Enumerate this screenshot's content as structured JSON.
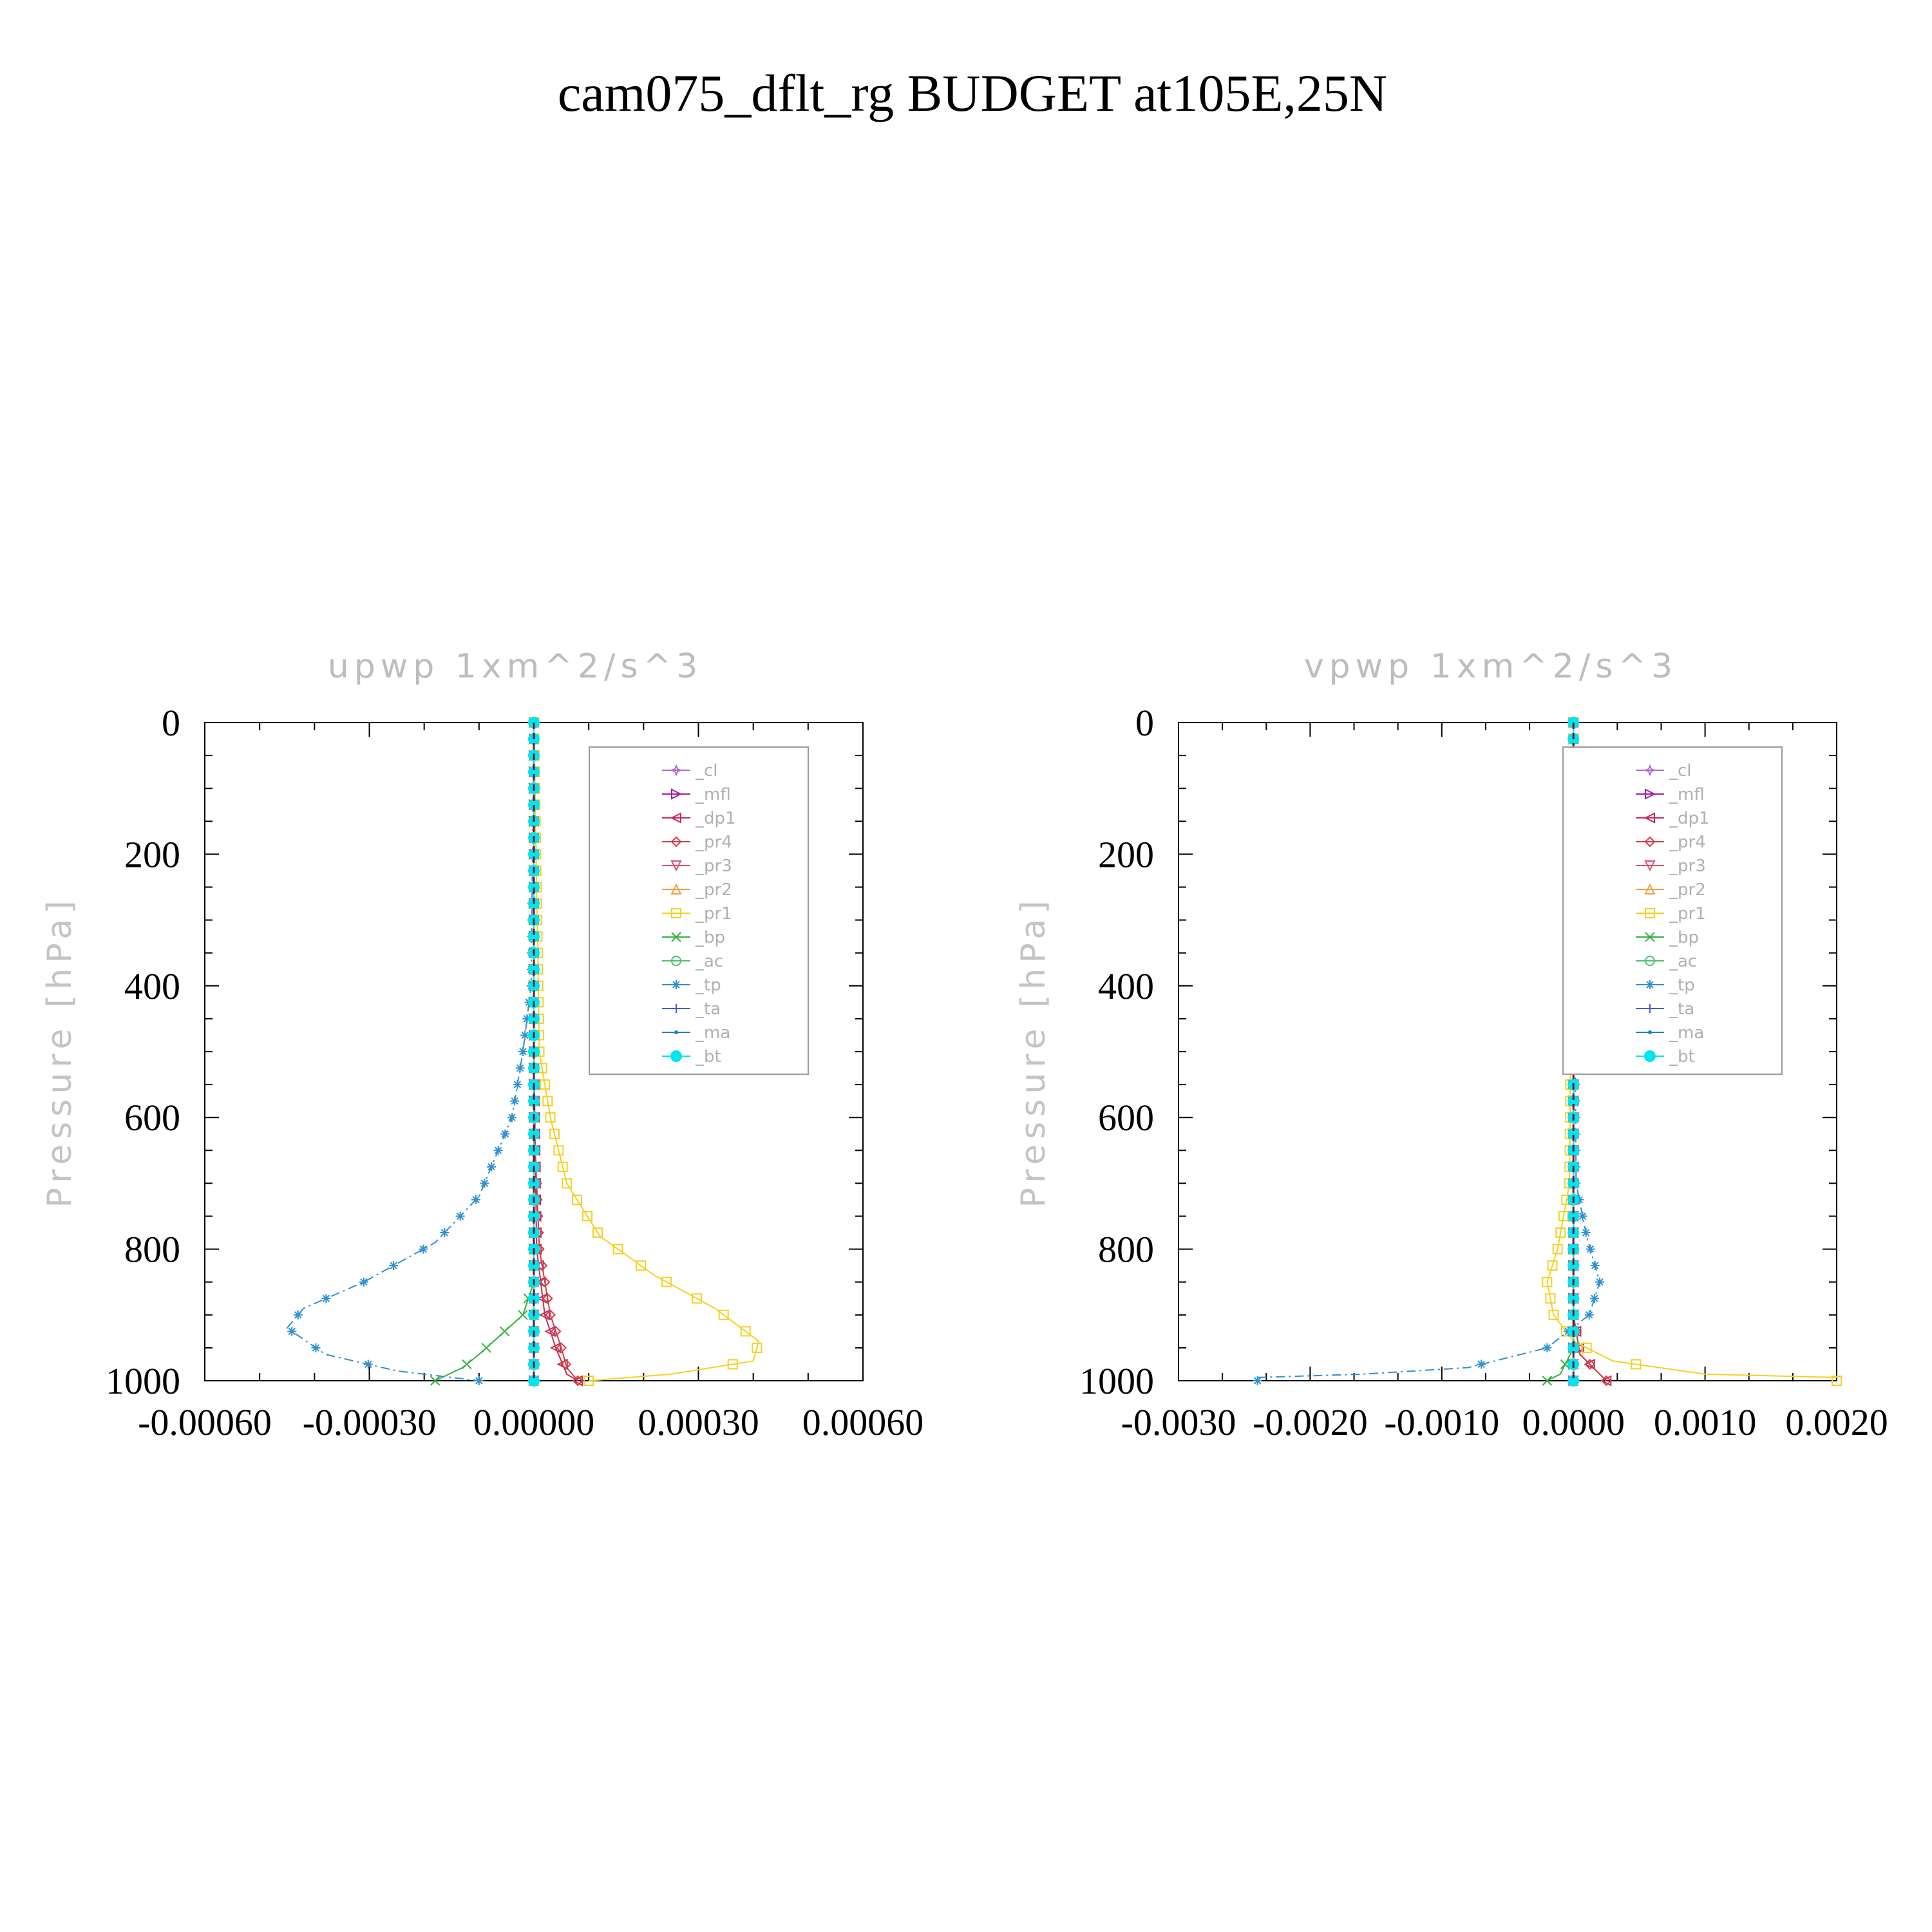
{
  "figure": {
    "title": "cam075_dflt_rg  BUDGET at105E,25N"
  },
  "chart_data": [
    {
      "type": "line",
      "title": "upwp   1xm^2/s^3",
      "ylabel": "Pressure [hPa]",
      "xlabel": "",
      "xlim": [
        -0.0006,
        0.0006
      ],
      "ylim": [
        1000,
        0
      ],
      "xticks": [
        -0.0006,
        -0.0003,
        0.0,
        0.0003,
        0.0006
      ],
      "xtick_labels": [
        "-0.00060",
        "-0.00030",
        "0.00000",
        "0.00030",
        "0.00060"
      ],
      "yticks": [
        0,
        200,
        400,
        600,
        800,
        1000
      ],
      "ytick_labels": [
        "0",
        "200",
        "400",
        "600",
        "800",
        "1000"
      ],
      "legend": "top-right",
      "series": [
        {
          "name": "_cl",
          "color": "#b06ad0",
          "marker": "star",
          "points": [
            [
              0,
              0
            ],
            [
              0,
              1000
            ]
          ]
        },
        {
          "name": "_mfl",
          "color": "#a020a0",
          "marker": "tri-right",
          "points": [
            [
              0,
              0
            ],
            [
              0,
              1000
            ]
          ]
        },
        {
          "name": "_dp1",
          "color": "#c8285a",
          "marker": "tri-left",
          "points": [
            [
              0,
              0
            ],
            [
              0,
              500
            ],
            [
              5e-06,
              800
            ],
            [
              2e-05,
              900
            ],
            [
              4e-05,
              950
            ],
            [
              6e-05,
              990
            ],
            [
              8e-05,
              1000
            ]
          ]
        },
        {
          "name": "_pr4",
          "color": "#d23c46",
          "marker": "diamond",
          "points": [
            [
              0,
              0
            ],
            [
              0,
              600
            ],
            [
              1e-05,
              800
            ],
            [
              3e-05,
              900
            ],
            [
              5e-05,
              950
            ],
            [
              6e-05,
              980
            ],
            [
              8e-05,
              1000
            ]
          ]
        },
        {
          "name": "_pr3",
          "color": "#e0506e",
          "marker": "tri-down",
          "points": [
            [
              0,
              0
            ],
            [
              0,
              1000
            ]
          ]
        },
        {
          "name": "_pr2",
          "color": "#f0a040",
          "marker": "tri-up",
          "points": [
            [
              0,
              0
            ],
            [
              0,
              1000
            ]
          ]
        },
        {
          "name": "_pr1",
          "color": "#f5d020",
          "marker": "square",
          "points": [
            [
              0,
              0
            ],
            [
              1e-05,
              500
            ],
            [
              3e-05,
              600
            ],
            [
              6e-05,
              700
            ],
            [
              0.00012,
              780
            ],
            [
              0.00022,
              840
            ],
            [
              0.00033,
              890
            ],
            [
              0.00041,
              940
            ],
            [
              0.0004,
              970
            ],
            [
              0.00025,
              990
            ],
            [
              0.0001,
              1000
            ]
          ]
        },
        {
          "name": "_bp",
          "color": "#30b040",
          "marker": "x",
          "points": [
            [
              0,
              0
            ],
            [
              0,
              850
            ],
            [
              -2e-05,
              900
            ],
            [
              -6e-05,
              930
            ],
            [
              -0.0001,
              960
            ],
            [
              -0.00013,
              980
            ],
            [
              -0.00018,
              1000
            ]
          ]
        },
        {
          "name": "_ac",
          "color": "#50c070",
          "marker": "circle",
          "points": [
            [
              0,
              0
            ],
            [
              0,
              1000
            ]
          ]
        },
        {
          "name": "_tp",
          "color": "#3090d0",
          "marker": "asterisk",
          "points": [
            [
              0,
              0
            ],
            [
              -5e-06,
              400
            ],
            [
              -2e-05,
              500
            ],
            [
              -4e-05,
              600
            ],
            [
              -0.0001,
              720
            ],
            [
              -0.00018,
              790
            ],
            [
              -0.00031,
              850
            ],
            [
              -0.00042,
              890
            ],
            [
              -0.00045,
              920
            ],
            [
              -0.00038,
              960
            ],
            [
              -0.00025,
              985
            ],
            [
              -0.0001,
              1000
            ]
          ]
        },
        {
          "name": "_ta",
          "color": "#4060d0",
          "marker": "plus",
          "points": [
            [
              0,
              0
            ],
            [
              0,
              1000
            ]
          ]
        },
        {
          "name": "_ma",
          "color": "#2080c0",
          "marker": "dot",
          "points": [
            [
              0,
              0
            ],
            [
              0,
              1000
            ]
          ]
        },
        {
          "name": "_bt",
          "color": "#00e5ee",
          "marker": "filled-circle",
          "points": [
            [
              0,
              0
            ],
            [
              0,
              1000
            ]
          ]
        }
      ]
    },
    {
      "type": "line",
      "title": "vpwp   1xm^2/s^3",
      "ylabel": "Pressure [hPa]",
      "xlabel": "",
      "xlim": [
        -0.003,
        0.002
      ],
      "ylim": [
        1000,
        0
      ],
      "xticks": [
        -0.003,
        -0.002,
        -0.001,
        0.0,
        0.001,
        0.002
      ],
      "xtick_labels": [
        "-0.0030",
        "-0.0020",
        "-0.0010",
        "0.0000",
        "0.0010",
        "0.0020"
      ],
      "yticks": [
        0,
        200,
        400,
        600,
        800,
        1000
      ],
      "ytick_labels": [
        "0",
        "200",
        "400",
        "600",
        "800",
        "1000"
      ],
      "legend": "top-right",
      "series": [
        {
          "name": "_cl",
          "color": "#b06ad0",
          "marker": "star",
          "points": [
            [
              0,
              0
            ],
            [
              0,
              1000
            ]
          ]
        },
        {
          "name": "_mfl",
          "color": "#a020a0",
          "marker": "tri-right",
          "points": [
            [
              0,
              0
            ],
            [
              0,
              1000
            ]
          ]
        },
        {
          "name": "_dp1",
          "color": "#c8285a",
          "marker": "tri-left",
          "points": [
            [
              0,
              0
            ],
            [
              0,
              900
            ],
            [
              5e-05,
              960
            ],
            [
              0.0002,
              990
            ],
            [
              0.00025,
              1000
            ]
          ]
        },
        {
          "name": "_pr4",
          "color": "#d23c46",
          "marker": "diamond",
          "points": [
            [
              0,
              0
            ],
            [
              0,
              900
            ],
            [
              5e-05,
              960
            ],
            [
              0.0002,
              990
            ],
            [
              0.00025,
              1000
            ]
          ]
        },
        {
          "name": "_pr3",
          "color": "#e0506e",
          "marker": "tri-down",
          "points": [
            [
              0,
              0
            ],
            [
              0,
              1000
            ]
          ]
        },
        {
          "name": "_pr2",
          "color": "#f0a040",
          "marker": "tri-up",
          "points": [
            [
              0,
              0
            ],
            [
              0,
              1000
            ]
          ]
        },
        {
          "name": "_pr1",
          "color": "#f5d020",
          "marker": "square",
          "points": [
            [
              0,
              0
            ],
            [
              -3e-05,
              700
            ],
            [
              -0.00012,
              800
            ],
            [
              -0.0002,
              850
            ],
            [
              -0.00015,
              900
            ],
            [
              0,
              940
            ],
            [
              0.0003,
              970
            ],
            [
              0.001,
              990
            ],
            [
              0.002,
              995
            ]
          ]
        },
        {
          "name": "_bp",
          "color": "#30b040",
          "marker": "x",
          "points": [
            [
              0,
              0
            ],
            [
              0,
              950
            ],
            [
              -0.0001,
              990
            ],
            [
              -0.0002,
              1000
            ]
          ]
        },
        {
          "name": "_ac",
          "color": "#50c070",
          "marker": "circle",
          "points": [
            [
              0,
              0
            ],
            [
              0,
              1000
            ]
          ]
        },
        {
          "name": "_tp",
          "color": "#3090d0",
          "marker": "asterisk",
          "points": [
            [
              0,
              0
            ],
            [
              2e-05,
              700
            ],
            [
              0.0001,
              780
            ],
            [
              0.0002,
              850
            ],
            [
              0.00012,
              900
            ],
            [
              -0.0002,
              950
            ],
            [
              -0.0008,
              980
            ],
            [
              -0.0016,
              990
            ],
            [
              -0.0024,
              995
            ]
          ]
        },
        {
          "name": "_ta",
          "color": "#4060d0",
          "marker": "plus",
          "points": [
            [
              0,
              0
            ],
            [
              0,
              1000
            ]
          ]
        },
        {
          "name": "_ma",
          "color": "#2080c0",
          "marker": "dot",
          "points": [
            [
              0,
              0
            ],
            [
              0,
              1000
            ]
          ]
        },
        {
          "name": "_bt",
          "color": "#00e5ee",
          "marker": "filled-circle",
          "points": [
            [
              0,
              0
            ],
            [
              0,
              1000
            ]
          ]
        }
      ]
    }
  ]
}
